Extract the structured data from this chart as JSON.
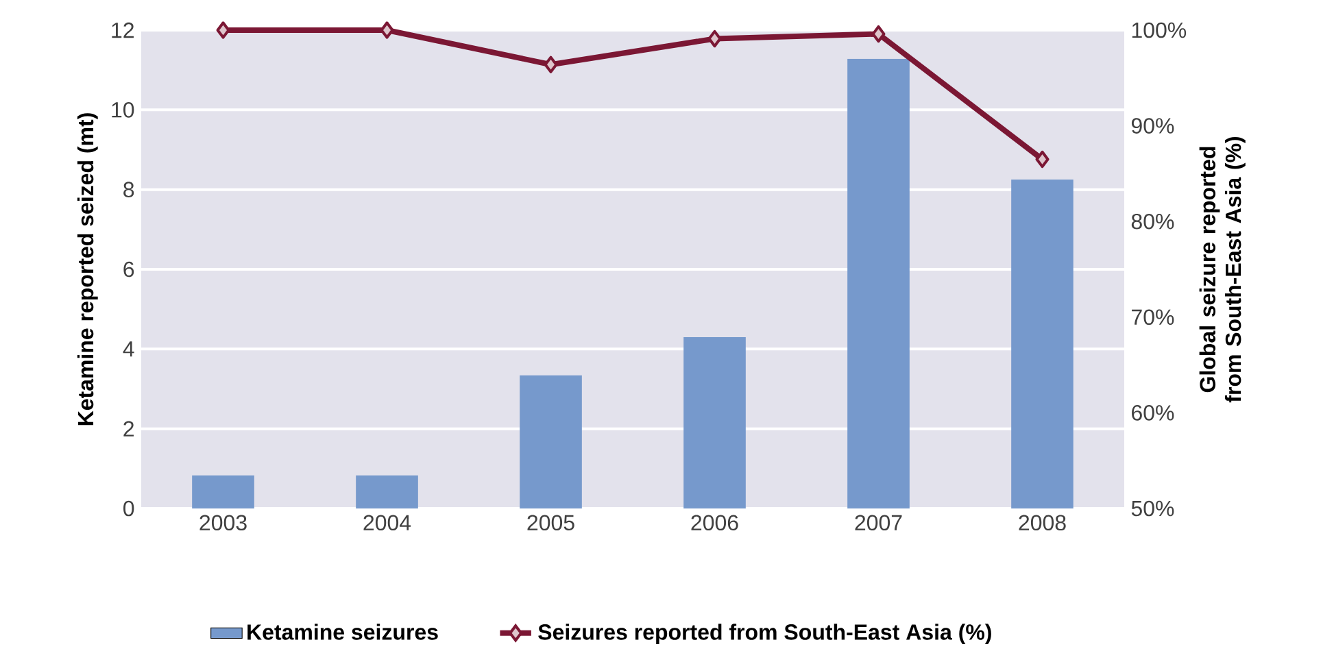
{
  "chart_data": {
    "type": "bar",
    "ylabel": "Ketamine reported seized (mt)",
    "y2label": "Global seizure reported from South-East Asia (%)",
    "categories": [
      "2003",
      "2004",
      "2005",
      "2006",
      "2007",
      "2008"
    ],
    "series": [
      {
        "name": "Ketamine seizures",
        "color": "#7699cc",
        "values": [
          0.83,
          0.83,
          3.34,
          4.3,
          11.28,
          8.25
        ]
      },
      {
        "name": "Seizures reported from South-East Asia (%)",
        "type": "line",
        "axis": "y2",
        "color": "#7b1734",
        "values": [
          100,
          100,
          96.4,
          99.1,
          99.6,
          86.5
        ]
      }
    ],
    "ylim": [
      0,
      12
    ],
    "yticks": [
      0,
      2,
      4,
      6,
      8,
      10,
      12
    ],
    "y2lim": [
      50,
      100
    ],
    "y2ticks": [
      {
        "value": 50,
        "label": "50%"
      },
      {
        "value": 60,
        "label": "60%"
      },
      {
        "value": 70,
        "label": "70%"
      },
      {
        "value": 80,
        "label": "80%"
      },
      {
        "value": 90,
        "label": "90%"
      },
      {
        "value": 100,
        "label": "100%"
      }
    ],
    "grid": "y",
    "legend": "bottom",
    "marker": "diamond",
    "line_style": "solid"
  }
}
